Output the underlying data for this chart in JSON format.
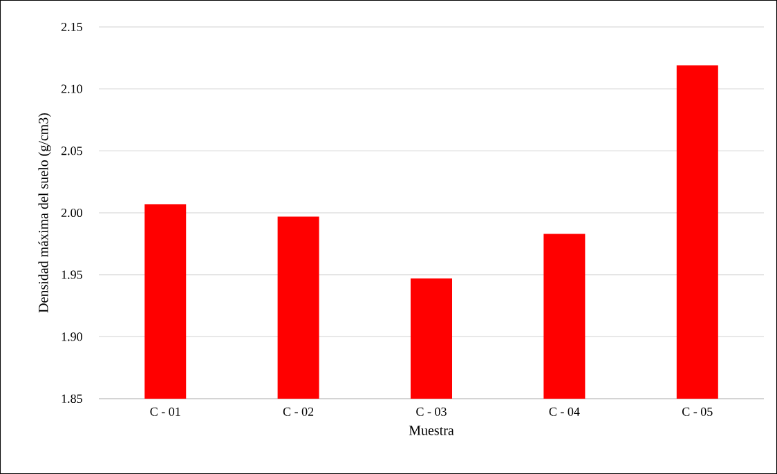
{
  "chart_data": {
    "type": "bar",
    "xlabel": "Muestra",
    "ylabel": "Densidad máxima del suelo (g/cm3)",
    "categories": [
      "C - 01",
      "C - 02",
      "C - 03",
      "C - 04",
      "C - 05"
    ],
    "values": [
      2.007,
      1.997,
      1.947,
      1.983,
      2.119
    ],
    "color": "#ff0000",
    "ylim": [
      1.85,
      2.15
    ],
    "yticks": [
      {
        "value": 1.85,
        "label": "1.85"
      },
      {
        "value": 1.9,
        "label": "1.90"
      },
      {
        "value": 1.95,
        "label": "1.95"
      },
      {
        "value": 2.0,
        "label": "2.00"
      },
      {
        "value": 2.05,
        "label": "2.05"
      },
      {
        "value": 2.1,
        "label": "2.10"
      },
      {
        "value": 2.15,
        "label": "2.15"
      }
    ],
    "grid": "y"
  }
}
